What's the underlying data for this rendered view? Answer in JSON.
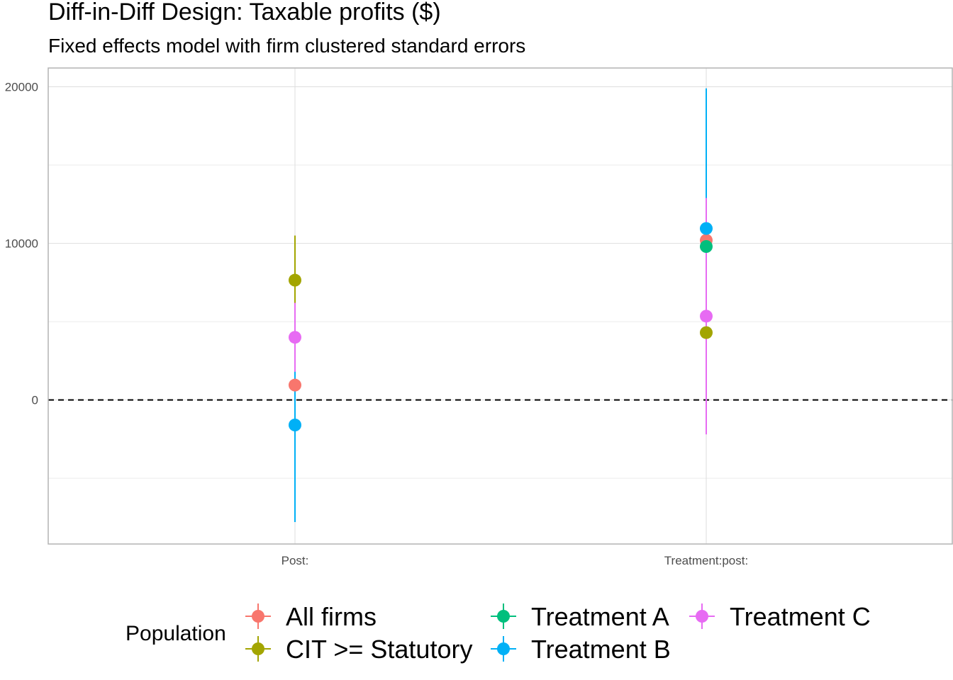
{
  "chart_data": {
    "type": "scatter",
    "title": "Diff-in-Diff Design: Taxable profits  ($)",
    "subtitle": "Fixed effects model with firm clustered standard errors",
    "xlabel": "",
    "ylabel": "",
    "categories": [
      "Post:",
      "Treatment:post:"
    ],
    "ylim": [
      -9200,
      21200
    ],
    "y_ticks": [
      0,
      10000,
      20000
    ],
    "y_minor_ticks": [
      -5000,
      5000,
      15000
    ],
    "grid": true,
    "reference_line": {
      "y": 0,
      "style": "dashed"
    },
    "legend": {
      "title": "Population",
      "position": "bottom"
    },
    "series": [
      {
        "name": "All firms",
        "color": "#F8766D",
        "points": [
          {
            "x": "Post:",
            "estimate": 950,
            "ci_low": -700,
            "ci_high": 2600
          },
          {
            "x": "Treatment:post:",
            "estimate": 10200,
            "ci_low": 7900,
            "ci_high": 12500
          }
        ]
      },
      {
        "name": "CIT >= Statutory",
        "color": "#A3A500",
        "points": [
          {
            "x": "Post:",
            "estimate": 7650,
            "ci_low": 4800,
            "ci_high": 10500
          },
          {
            "x": "Treatment:post:",
            "estimate": 4300,
            "ci_low": -1600,
            "ci_high": 10200
          }
        ]
      },
      {
        "name": "Treatment A",
        "color": "#00BF7D",
        "points": [
          {
            "x": "Treatment:post:",
            "estimate": 9800,
            "ci_low": 7600,
            "ci_high": 12000
          }
        ]
      },
      {
        "name": "Treatment B",
        "color": "#00B0F6",
        "points": [
          {
            "x": "Post:",
            "estimate": -1600,
            "ci_low": -7800,
            "ci_high": 4600
          },
          {
            "x": "Treatment:post:",
            "estimate": 10950,
            "ci_low": 2000,
            "ci_high": 19900
          }
        ]
      },
      {
        "name": "Treatment C",
        "color": "#E76BF3",
        "points": [
          {
            "x": "Post:",
            "estimate": 4000,
            "ci_low": 1800,
            "ci_high": 6200
          },
          {
            "x": "Treatment:post:",
            "estimate": 5350,
            "ci_low": -2200,
            "ci_high": 12900
          }
        ]
      }
    ]
  }
}
